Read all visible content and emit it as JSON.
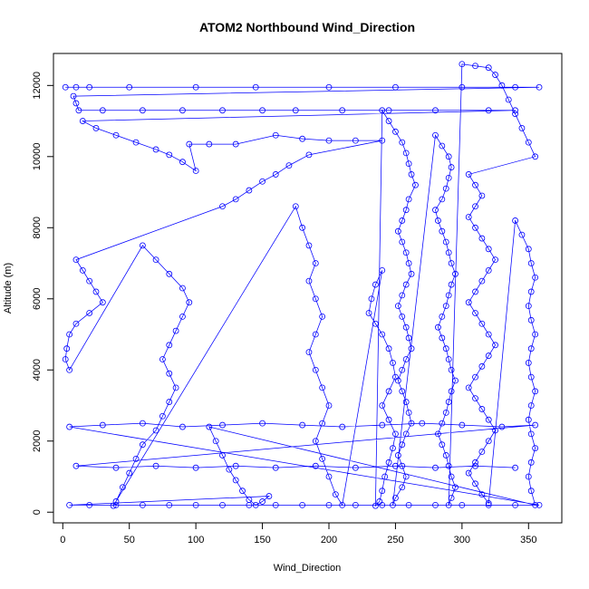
{
  "chart_data": {
    "type": "scatter",
    "title": "ATOM2 Northbound Wind_Direction",
    "xlabel": "Wind_Direction",
    "ylabel": "Altitude (m)",
    "xlim": [
      -7,
      375
    ],
    "ylim": [
      -300,
      12900
    ],
    "xticks": [
      0,
      50,
      100,
      150,
      200,
      250,
      300,
      350
    ],
    "yticks": [
      0,
      2000,
      4000,
      6000,
      8000,
      10000,
      12000
    ],
    "color": "#0000ff",
    "marker": "open-circle",
    "connected": true,
    "series": [
      {
        "points": [
          [
            2,
            11950
          ],
          [
            10,
            11950
          ],
          [
            20,
            11950
          ],
          [
            50,
            11950
          ],
          [
            100,
            11950
          ],
          [
            145,
            11950
          ],
          [
            200,
            11950
          ],
          [
            250,
            11950
          ],
          [
            300,
            11950
          ],
          [
            340,
            11950
          ],
          [
            358,
            11950
          ],
          [
            8,
            11700
          ],
          [
            10,
            11500
          ],
          [
            12,
            11300
          ],
          [
            30,
            11300
          ],
          [
            60,
            11300
          ],
          [
            90,
            11300
          ],
          [
            120,
            11300
          ],
          [
            150,
            11300
          ],
          [
            175,
            11300
          ],
          [
            210,
            11300
          ],
          [
            245,
            11300
          ],
          [
            280,
            11300
          ],
          [
            320,
            11300
          ],
          [
            340,
            11300
          ],
          [
            15,
            11000
          ],
          [
            25,
            10800
          ],
          [
            40,
            10600
          ],
          [
            55,
            10400
          ],
          [
            70,
            10200
          ],
          [
            80,
            10050
          ],
          [
            90,
            9850
          ],
          [
            100,
            9600
          ],
          [
            95,
            10350
          ],
          [
            110,
            10350
          ],
          [
            130,
            10350
          ],
          [
            160,
            10600
          ],
          [
            180,
            10500
          ],
          [
            200,
            10450
          ],
          [
            220,
            10450
          ],
          [
            240,
            10450
          ],
          [
            185,
            10050
          ],
          [
            170,
            9750
          ],
          [
            160,
            9500
          ],
          [
            150,
            9300
          ],
          [
            140,
            9050
          ],
          [
            130,
            8800
          ],
          [
            120,
            8600
          ],
          [
            10,
            7100
          ],
          [
            15,
            6800
          ],
          [
            20,
            6500
          ],
          [
            25,
            6200
          ],
          [
            30,
            5900
          ],
          [
            20,
            5600
          ],
          [
            10,
            5300
          ],
          [
            5,
            5000
          ],
          [
            3,
            4600
          ],
          [
            2,
            4300
          ],
          [
            5,
            4000
          ],
          [
            60,
            7500
          ],
          [
            70,
            7100
          ],
          [
            80,
            6700
          ],
          [
            90,
            6300
          ],
          [
            95,
            5900
          ],
          [
            90,
            5500
          ],
          [
            85,
            5100
          ],
          [
            80,
            4700
          ],
          [
            75,
            4300
          ],
          [
            80,
            3900
          ],
          [
            85,
            3500
          ],
          [
            80,
            3100
          ],
          [
            75,
            2700
          ],
          [
            70,
            2300
          ],
          [
            60,
            1900
          ],
          [
            55,
            1500
          ],
          [
            50,
            1100
          ],
          [
            45,
            700
          ],
          [
            40,
            300
          ],
          [
            38,
            180
          ],
          [
            175,
            8600
          ],
          [
            180,
            8000
          ],
          [
            185,
            7500
          ],
          [
            190,
            7000
          ],
          [
            185,
            6500
          ],
          [
            190,
            6000
          ],
          [
            195,
            5500
          ],
          [
            190,
            5000
          ],
          [
            185,
            4500
          ],
          [
            190,
            4000
          ],
          [
            195,
            3500
          ],
          [
            200,
            3000
          ],
          [
            195,
            2500
          ],
          [
            190,
            2000
          ],
          [
            195,
            1500
          ],
          [
            200,
            1000
          ],
          [
            205,
            500
          ],
          [
            210,
            200
          ],
          [
            240,
            6800
          ],
          [
            235,
            6400
          ],
          [
            232,
            6000
          ],
          [
            230,
            5600
          ],
          [
            235,
            5300
          ],
          [
            240,
            5000
          ],
          [
            245,
            4600
          ],
          [
            248,
            4200
          ],
          [
            250,
            3800
          ],
          [
            245,
            3400
          ],
          [
            240,
            3000
          ],
          [
            245,
            2600
          ],
          [
            250,
            2200
          ],
          [
            248,
            1800
          ],
          [
            245,
            1400
          ],
          [
            242,
            1000
          ],
          [
            240,
            600
          ],
          [
            238,
            300
          ],
          [
            235,
            180
          ],
          [
            240,
            11300
          ],
          [
            245,
            11000
          ],
          [
            250,
            10700
          ],
          [
            255,
            10400
          ],
          [
            258,
            10100
          ],
          [
            260,
            9800
          ],
          [
            262,
            9500
          ],
          [
            265,
            9200
          ],
          [
            260,
            8800
          ],
          [
            258,
            8500
          ],
          [
            255,
            8200
          ],
          [
            252,
            7900
          ],
          [
            255,
            7600
          ],
          [
            258,
            7300
          ],
          [
            260,
            7000
          ],
          [
            262,
            6700
          ],
          [
            258,
            6400
          ],
          [
            255,
            6100
          ],
          [
            252,
            5800
          ],
          [
            255,
            5500
          ],
          [
            258,
            5200
          ],
          [
            260,
            4900
          ],
          [
            262,
            4600
          ],
          [
            258,
            4300
          ],
          [
            255,
            4000
          ],
          [
            252,
            3700
          ],
          [
            255,
            3400
          ],
          [
            258,
            3100
          ],
          [
            260,
            2800
          ],
          [
            262,
            2500
          ],
          [
            258,
            2200
          ],
          [
            255,
            1900
          ],
          [
            252,
            1600
          ],
          [
            255,
            1300
          ],
          [
            258,
            1000
          ],
          [
            255,
            700
          ],
          [
            250,
            400
          ],
          [
            248,
            200
          ],
          [
            280,
            10600
          ],
          [
            285,
            10300
          ],
          [
            290,
            10000
          ],
          [
            292,
            9700
          ],
          [
            290,
            9400
          ],
          [
            288,
            9100
          ],
          [
            285,
            8800
          ],
          [
            280,
            8500
          ],
          [
            282,
            8200
          ],
          [
            285,
            7900
          ],
          [
            288,
            7600
          ],
          [
            290,
            7300
          ],
          [
            292,
            7000
          ],
          [
            295,
            6700
          ],
          [
            292,
            6400
          ],
          [
            290,
            6100
          ],
          [
            288,
            5800
          ],
          [
            285,
            5500
          ],
          [
            282,
            5200
          ],
          [
            285,
            4900
          ],
          [
            288,
            4600
          ],
          [
            290,
            4300
          ],
          [
            292,
            4000
          ],
          [
            295,
            3700
          ],
          [
            292,
            3400
          ],
          [
            290,
            3100
          ],
          [
            288,
            2800
          ],
          [
            285,
            2500
          ],
          [
            282,
            2200
          ],
          [
            285,
            1900
          ],
          [
            288,
            1600
          ],
          [
            290,
            1300
          ],
          [
            292,
            1000
          ],
          [
            295,
            700
          ],
          [
            292,
            400
          ],
          [
            290,
            200
          ],
          [
            300,
            12600
          ],
          [
            310,
            12550
          ],
          [
            320,
            12500
          ],
          [
            325,
            12300
          ],
          [
            330,
            12000
          ],
          [
            335,
            11600
          ],
          [
            340,
            11200
          ],
          [
            345,
            10800
          ],
          [
            350,
            10400
          ],
          [
            355,
            10000
          ],
          [
            305,
            9500
          ],
          [
            310,
            9200
          ],
          [
            315,
            8900
          ],
          [
            310,
            8600
          ],
          [
            305,
            8300
          ],
          [
            310,
            8000
          ],
          [
            315,
            7700
          ],
          [
            320,
            7400
          ],
          [
            325,
            7100
          ],
          [
            320,
            6800
          ],
          [
            315,
            6500
          ],
          [
            310,
            6200
          ],
          [
            305,
            5900
          ],
          [
            310,
            5600
          ],
          [
            315,
            5300
          ],
          [
            320,
            5000
          ],
          [
            325,
            4700
          ],
          [
            320,
            4400
          ],
          [
            315,
            4100
          ],
          [
            310,
            3800
          ],
          [
            305,
            3500
          ],
          [
            310,
            3200
          ],
          [
            315,
            2900
          ],
          [
            320,
            2600
          ],
          [
            325,
            2300
          ],
          [
            320,
            2000
          ],
          [
            315,
            1700
          ],
          [
            310,
            1400
          ],
          [
            305,
            1100
          ],
          [
            310,
            800
          ],
          [
            315,
            500
          ],
          [
            320,
            250
          ],
          [
            340,
            8200
          ],
          [
            345,
            7800
          ],
          [
            350,
            7400
          ],
          [
            352,
            7000
          ],
          [
            355,
            6600
          ],
          [
            352,
            6200
          ],
          [
            350,
            5800
          ],
          [
            352,
            5400
          ],
          [
            355,
            5000
          ],
          [
            352,
            4600
          ],
          [
            350,
            4200
          ],
          [
            352,
            3800
          ],
          [
            355,
            3400
          ],
          [
            352,
            3000
          ],
          [
            350,
            2600
          ],
          [
            352,
            2200
          ],
          [
            355,
            1800
          ],
          [
            352,
            1400
          ],
          [
            350,
            1000
          ],
          [
            352,
            600
          ],
          [
            355,
            200
          ],
          [
            110,
            2400
          ],
          [
            115,
            2000
          ],
          [
            120,
            1600
          ],
          [
            125,
            1200
          ],
          [
            130,
            900
          ],
          [
            135,
            600
          ],
          [
            140,
            350
          ],
          [
            145,
            200
          ],
          [
            150,
            300
          ],
          [
            155,
            450
          ],
          [
            5,
            200
          ],
          [
            20,
            200
          ],
          [
            40,
            200
          ],
          [
            60,
            200
          ],
          [
            80,
            200
          ],
          [
            100,
            200
          ],
          [
            120,
            200
          ],
          [
            140,
            200
          ],
          [
            160,
            200
          ],
          [
            180,
            200
          ],
          [
            200,
            200
          ],
          [
            220,
            200
          ],
          [
            240,
            200
          ],
          [
            260,
            200
          ],
          [
            280,
            200
          ],
          [
            300,
            200
          ],
          [
            320,
            200
          ],
          [
            340,
            200
          ],
          [
            358,
            200
          ],
          [
            5,
            2400
          ],
          [
            30,
            2450
          ],
          [
            60,
            2500
          ],
          [
            90,
            2400
          ],
          [
            120,
            2450
          ],
          [
            150,
            2500
          ],
          [
            180,
            2450
          ],
          [
            210,
            2400
          ],
          [
            240,
            2450
          ],
          [
            270,
            2500
          ],
          [
            300,
            2450
          ],
          [
            330,
            2400
          ],
          [
            355,
            2450
          ],
          [
            10,
            1300
          ],
          [
            40,
            1250
          ],
          [
            70,
            1300
          ],
          [
            100,
            1250
          ],
          [
            130,
            1300
          ],
          [
            160,
            1250
          ],
          [
            190,
            1300
          ],
          [
            220,
            1250
          ],
          [
            250,
            1300
          ],
          [
            280,
            1250
          ],
          [
            310,
            1300
          ],
          [
            340,
            1250
          ]
        ]
      }
    ],
    "grid": false
  }
}
